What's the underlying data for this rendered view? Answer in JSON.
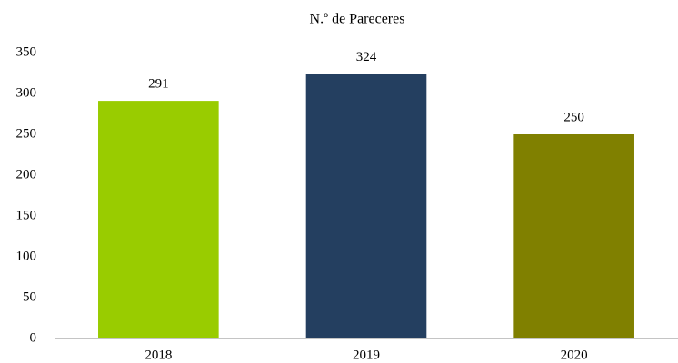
{
  "chart_data": {
    "type": "bar",
    "title": "N.º de Pareceres",
    "categories": [
      "2018",
      "2019",
      "2020"
    ],
    "values": [
      291,
      324,
      250
    ],
    "colors": [
      "#99cc00",
      "#243f60",
      "#808000"
    ],
    "ylim": [
      0,
      350
    ],
    "yticks": [
      0,
      50,
      100,
      150,
      200,
      250,
      300,
      350
    ],
    "grid": false
  }
}
